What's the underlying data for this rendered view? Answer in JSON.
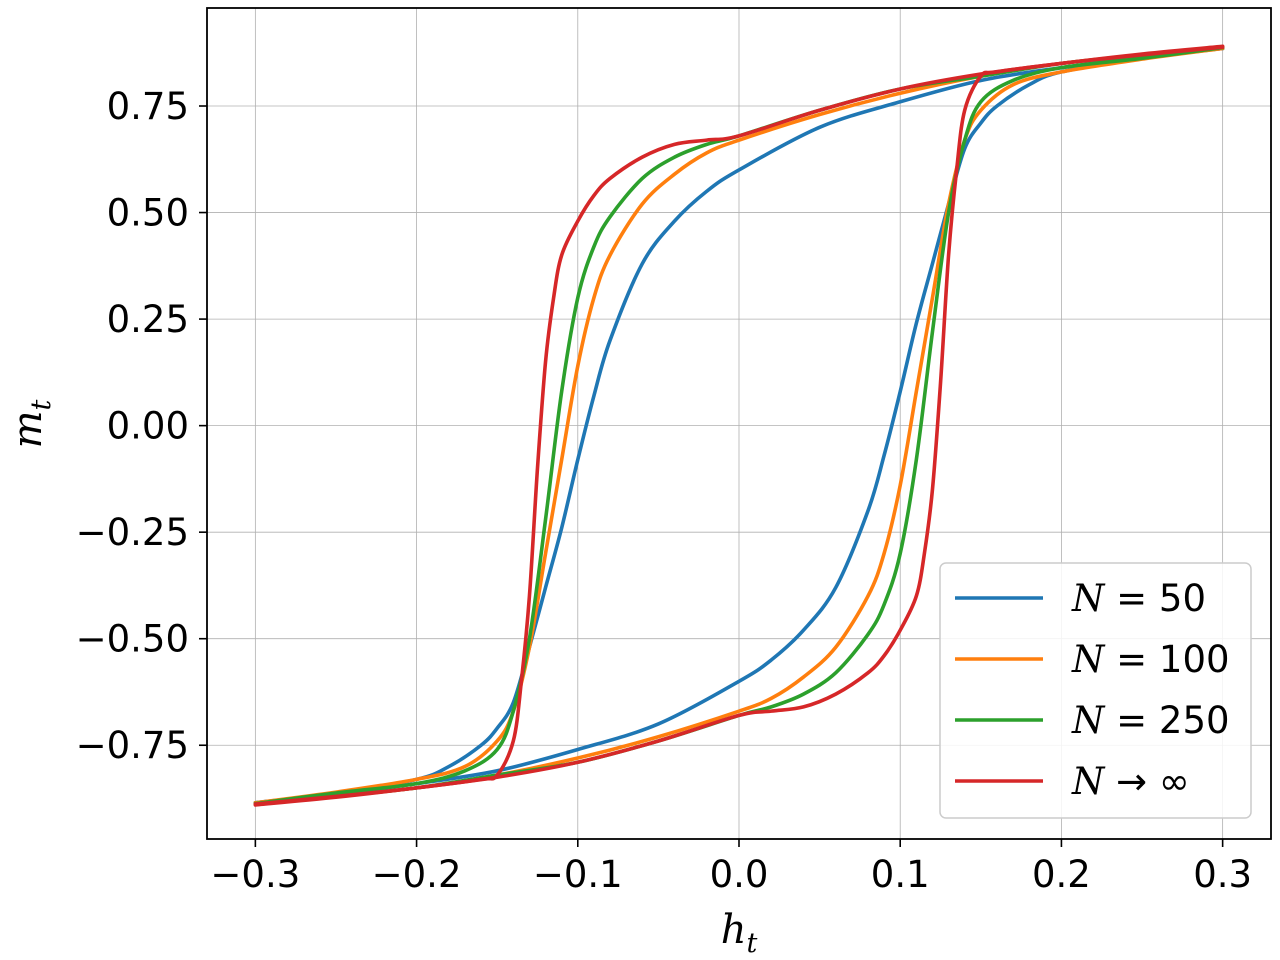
{
  "chart_data": {
    "type": "line",
    "xlabel": "h_t",
    "ylabel": "m_t",
    "xlim": [
      -0.33,
      0.33
    ],
    "ylim": [
      -0.97,
      0.98
    ],
    "xticks": [
      -0.3,
      -0.2,
      -0.1,
      0.0,
      0.1,
      0.2,
      0.3
    ],
    "xtick_labels": [
      "−0.3",
      "−0.2",
      "−0.1",
      "0.0",
      "0.1",
      "0.2",
      "0.3"
    ],
    "yticks": [
      -0.75,
      -0.5,
      -0.25,
      0.0,
      0.25,
      0.5,
      0.75
    ],
    "ytick_labels": [
      "−0.75",
      "−0.50",
      "−0.25",
      "0.00",
      "0.25",
      "0.50",
      "0.75"
    ],
    "grid": true,
    "legend_position": "lower-right",
    "series": [
      {
        "name": "N = 50",
        "legend_main": "N",
        "legend_rest": " = 50",
        "color": "#1f77b4",
        "branch_up": [
          [
            -0.3,
            -0.885
          ],
          [
            -0.25,
            -0.862
          ],
          [
            -0.2,
            -0.83
          ],
          [
            -0.18,
            -0.8
          ],
          [
            -0.16,
            -0.75
          ],
          [
            -0.15,
            -0.71
          ],
          [
            -0.14,
            -0.65
          ],
          [
            -0.13,
            -0.52
          ],
          [
            -0.12,
            -0.38
          ],
          [
            -0.11,
            -0.24
          ],
          [
            -0.1,
            -0.08
          ],
          [
            -0.09,
            0.07
          ],
          [
            -0.08,
            0.2
          ],
          [
            -0.06,
            0.38
          ],
          [
            -0.04,
            0.48
          ],
          [
            -0.02,
            0.55
          ],
          [
            0.0,
            0.6
          ],
          [
            0.05,
            0.7
          ],
          [
            0.1,
            0.76
          ],
          [
            0.15,
            0.81
          ],
          [
            0.2,
            0.84
          ],
          [
            0.25,
            0.865
          ],
          [
            0.3,
            0.885
          ]
        ],
        "branch_down": [
          [
            0.3,
            0.885
          ],
          [
            0.25,
            0.862
          ],
          [
            0.2,
            0.83
          ],
          [
            0.18,
            0.8
          ],
          [
            0.16,
            0.75
          ],
          [
            0.15,
            0.71
          ],
          [
            0.14,
            0.65
          ],
          [
            0.13,
            0.52
          ],
          [
            0.12,
            0.38
          ],
          [
            0.11,
            0.24
          ],
          [
            0.1,
            0.08
          ],
          [
            0.09,
            -0.07
          ],
          [
            0.08,
            -0.2
          ],
          [
            0.06,
            -0.38
          ],
          [
            0.04,
            -0.48
          ],
          [
            0.02,
            -0.55
          ],
          [
            0.0,
            -0.6
          ],
          [
            -0.05,
            -0.7
          ],
          [
            -0.1,
            -0.76
          ],
          [
            -0.15,
            -0.81
          ],
          [
            -0.2,
            -0.84
          ],
          [
            -0.25,
            -0.865
          ],
          [
            -0.3,
            -0.885
          ]
        ]
      },
      {
        "name": "N = 100",
        "legend_main": "N",
        "legend_rest": " = 100",
        "color": "#ff7f0e",
        "branch_up": [
          [
            -0.3,
            -0.885
          ],
          [
            -0.25,
            -0.86
          ],
          [
            -0.2,
            -0.83
          ],
          [
            -0.17,
            -0.8
          ],
          [
            -0.15,
            -0.74
          ],
          [
            -0.14,
            -0.67
          ],
          [
            -0.13,
            -0.52
          ],
          [
            -0.12,
            -0.3
          ],
          [
            -0.11,
            -0.08
          ],
          [
            -0.1,
            0.14
          ],
          [
            -0.09,
            0.3
          ],
          [
            -0.08,
            0.4
          ],
          [
            -0.06,
            0.52
          ],
          [
            -0.04,
            0.59
          ],
          [
            -0.02,
            0.64
          ],
          [
            0.0,
            0.67
          ],
          [
            0.05,
            0.73
          ],
          [
            0.1,
            0.78
          ],
          [
            0.15,
            0.82
          ],
          [
            0.2,
            0.85
          ],
          [
            0.25,
            0.87
          ],
          [
            0.3,
            0.887
          ]
        ],
        "branch_down": [
          [
            0.3,
            0.885
          ],
          [
            0.25,
            0.86
          ],
          [
            0.2,
            0.83
          ],
          [
            0.17,
            0.8
          ],
          [
            0.15,
            0.74
          ],
          [
            0.14,
            0.67
          ],
          [
            0.13,
            0.52
          ],
          [
            0.12,
            0.3
          ],
          [
            0.11,
            0.08
          ],
          [
            0.1,
            -0.14
          ],
          [
            0.09,
            -0.3
          ],
          [
            0.08,
            -0.4
          ],
          [
            0.06,
            -0.52
          ],
          [
            0.04,
            -0.59
          ],
          [
            0.02,
            -0.64
          ],
          [
            0.0,
            -0.67
          ],
          [
            -0.05,
            -0.73
          ],
          [
            -0.1,
            -0.78
          ],
          [
            -0.15,
            -0.82
          ],
          [
            -0.2,
            -0.85
          ],
          [
            -0.25,
            -0.87
          ],
          [
            -0.3,
            -0.887
          ]
        ]
      },
      {
        "name": "N = 250",
        "legend_main": "N",
        "legend_rest": " = 250",
        "color": "#2ca02c",
        "branch_up": [
          [
            -0.3,
            -0.887
          ],
          [
            -0.25,
            -0.862
          ],
          [
            -0.2,
            -0.84
          ],
          [
            -0.17,
            -0.81
          ],
          [
            -0.15,
            -0.76
          ],
          [
            -0.14,
            -0.67
          ],
          [
            -0.13,
            -0.5
          ],
          [
            -0.12,
            -0.22
          ],
          [
            -0.11,
            0.08
          ],
          [
            -0.1,
            0.3
          ],
          [
            -0.09,
            0.42
          ],
          [
            -0.08,
            0.49
          ],
          [
            -0.06,
            0.58
          ],
          [
            -0.04,
            0.63
          ],
          [
            -0.02,
            0.66
          ],
          [
            0.0,
            0.68
          ],
          [
            0.05,
            0.74
          ],
          [
            0.1,
            0.79
          ],
          [
            0.15,
            0.82
          ],
          [
            0.2,
            0.85
          ],
          [
            0.25,
            0.87
          ],
          [
            0.3,
            0.888
          ]
        ],
        "branch_down": [
          [
            0.3,
            0.887
          ],
          [
            0.25,
            0.862
          ],
          [
            0.2,
            0.84
          ],
          [
            0.17,
            0.81
          ],
          [
            0.15,
            0.76
          ],
          [
            0.14,
            0.67
          ],
          [
            0.13,
            0.5
          ],
          [
            0.12,
            0.22
          ],
          [
            0.11,
            -0.08
          ],
          [
            0.1,
            -0.3
          ],
          [
            0.09,
            -0.42
          ],
          [
            0.08,
            -0.49
          ],
          [
            0.06,
            -0.58
          ],
          [
            0.04,
            -0.63
          ],
          [
            0.02,
            -0.66
          ],
          [
            0.0,
            -0.68
          ],
          [
            -0.05,
            -0.74
          ],
          [
            -0.1,
            -0.79
          ],
          [
            -0.15,
            -0.82
          ],
          [
            -0.2,
            -0.85
          ],
          [
            -0.25,
            -0.87
          ],
          [
            -0.3,
            -0.888
          ]
        ]
      },
      {
        "name": "N → ∞",
        "legend_main": "N",
        "legend_rest": " → ∞",
        "color": "#d62728",
        "branch_up": [
          [
            -0.3,
            -0.888
          ],
          [
            -0.25,
            -0.87
          ],
          [
            -0.2,
            -0.85
          ],
          [
            -0.16,
            -0.83
          ],
          [
            -0.15,
            -0.82
          ],
          [
            -0.14,
            -0.74
          ],
          [
            -0.135,
            -0.6
          ],
          [
            -0.13,
            -0.4
          ],
          [
            -0.125,
            -0.1
          ],
          [
            -0.12,
            0.15
          ],
          [
            -0.115,
            0.3
          ],
          [
            -0.11,
            0.4
          ],
          [
            -0.1,
            0.48
          ],
          [
            -0.09,
            0.54
          ],
          [
            -0.08,
            0.58
          ],
          [
            -0.06,
            0.63
          ],
          [
            -0.04,
            0.66
          ],
          [
            -0.02,
            0.67
          ],
          [
            0.0,
            0.68
          ],
          [
            0.05,
            0.74
          ],
          [
            0.1,
            0.79
          ],
          [
            0.15,
            0.825
          ],
          [
            0.2,
            0.85
          ],
          [
            0.25,
            0.872
          ],
          [
            0.3,
            0.89
          ]
        ],
        "branch_down": [
          [
            0.3,
            0.888
          ],
          [
            0.25,
            0.87
          ],
          [
            0.2,
            0.85
          ],
          [
            0.16,
            0.83
          ],
          [
            0.15,
            0.82
          ],
          [
            0.14,
            0.74
          ],
          [
            0.135,
            0.6
          ],
          [
            0.13,
            0.4
          ],
          [
            0.125,
            0.1
          ],
          [
            0.12,
            -0.15
          ],
          [
            0.115,
            -0.3
          ],
          [
            0.11,
            -0.4
          ],
          [
            0.1,
            -0.48
          ],
          [
            0.09,
            -0.54
          ],
          [
            0.08,
            -0.58
          ],
          [
            0.06,
            -0.63
          ],
          [
            0.04,
            -0.66
          ],
          [
            0.02,
            -0.67
          ],
          [
            0.0,
            -0.68
          ],
          [
            -0.05,
            -0.74
          ],
          [
            -0.1,
            -0.79
          ],
          [
            -0.15,
            -0.825
          ],
          [
            -0.2,
            -0.85
          ],
          [
            -0.25,
            -0.872
          ],
          [
            -0.3,
            -0.89
          ]
        ]
      }
    ]
  }
}
